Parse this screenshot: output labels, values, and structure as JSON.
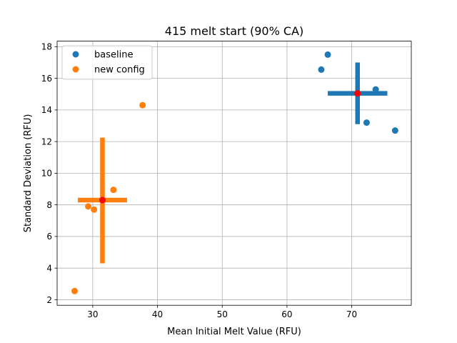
{
  "chart_data": {
    "type": "scatter",
    "title": "415 melt start (90% CA)",
    "xlabel": "Mean Initial Melt Value (RFU)",
    "ylabel": "Standard Deviation (RFU)",
    "xlim": [
      24.5,
      79.2
    ],
    "ylim": [
      1.65,
      18.35
    ],
    "xticks": [
      30,
      40,
      50,
      60,
      70
    ],
    "yticks": [
      2,
      4,
      6,
      8,
      10,
      12,
      14,
      16,
      18
    ],
    "grid": true,
    "legend": "top-left",
    "series": [
      {
        "name": "baseline",
        "color": "#1f77b4",
        "x": [
          65.3,
          66.3,
          73.7,
          72.3,
          76.7
        ],
        "y": [
          16.55,
          17.5,
          15.3,
          13.2,
          12.7
        ],
        "center": {
          "x": 70.9,
          "y": 15.05
        },
        "spread": {
          "x": [
            66.3,
            75.5
          ],
          "y": [
            13.1,
            17.0
          ]
        }
      },
      {
        "name": "new config",
        "color": "#ff7f0e",
        "x": [
          27.2,
          29.3,
          30.2,
          33.2,
          37.7
        ],
        "y": [
          2.55,
          7.9,
          7.7,
          8.95,
          14.3
        ],
        "center": {
          "x": 31.5,
          "y": 8.3
        },
        "spread": {
          "x": [
            27.7,
            35.3
          ],
          "y": [
            4.3,
            12.25
          ]
        }
      }
    ],
    "center_color": "#ff0000"
  }
}
